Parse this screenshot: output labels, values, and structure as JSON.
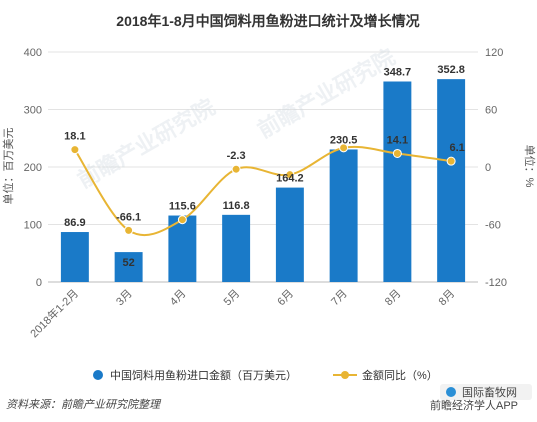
{
  "chart_data": {
    "type": "bar",
    "title": "2018年1-8月中国饲料用鱼粉进口统计及增长情况",
    "categories": [
      "2018年1-2月",
      "3月",
      "4月",
      "5月",
      "6月",
      "7月",
      "8月",
      "8月"
    ],
    "series": [
      {
        "name": "中国饲料用鱼粉进口金额（百万美元）",
        "type": "bar",
        "axis": "left",
        "values": [
          86.9,
          52,
          115.6,
          116.8,
          164.2,
          230.5,
          348.7,
          352.8
        ],
        "labels": [
          "86.9",
          "52",
          "115.6",
          "116.8",
          "164.2",
          "230.5",
          "348.7",
          "352.8"
        ]
      },
      {
        "name": "金额同比（%）",
        "type": "line",
        "axis": "right",
        "values": [
          18.1,
          -66.1,
          -55.0,
          -2.3,
          -8.0,
          20.0,
          14.1,
          6.1
        ],
        "labels": [
          "18.1",
          "-66.1",
          "",
          "-2.3",
          "",
          "",
          "14.1",
          "6.1"
        ]
      }
    ],
    "y_left": {
      "label": "单位：百万美元",
      "ylim": [
        0,
        400
      ],
      "ticks": [
        "0",
        "100",
        "200",
        "300",
        "400"
      ]
    },
    "y_right": {
      "label": "单位：%",
      "ylim": [
        -120,
        120
      ],
      "ticks": [
        "-120",
        "-60",
        "0",
        "60",
        "120"
      ]
    },
    "grid": true,
    "legend_position": "bottom",
    "colors": {
      "bar": "#1a7ac8",
      "line": "#e8b534",
      "marker": "#e8b534"
    }
  },
  "footer": {
    "source": "资料来源：前瞻产业研究院整理",
    "badge1": "国际畜牧网",
    "badge2": "前瞻经济学人APP"
  },
  "watermark": "前瞻产业研究院"
}
